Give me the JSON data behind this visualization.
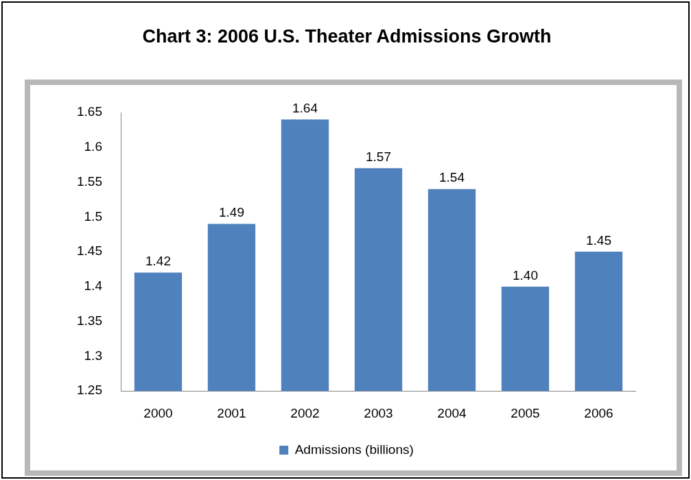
{
  "chart_data": {
    "type": "bar",
    "title": "Chart 3:  2006 U.S. Theater Admissions Growth",
    "categories": [
      "2000",
      "2001",
      "2002",
      "2003",
      "2004",
      "2005",
      "2006"
    ],
    "series": [
      {
        "name": "Admissions (billions)",
        "color": "#4f81bd",
        "values": [
          1.42,
          1.49,
          1.64,
          1.57,
          1.54,
          1.4,
          1.45
        ],
        "value_labels": [
          "1.42",
          "1.49",
          "1.64",
          "1.57",
          "1.54",
          "1.40",
          "1.45"
        ]
      }
    ],
    "ylim": [
      1.25,
      1.65
    ],
    "yticks": [
      1.25,
      1.3,
      1.35,
      1.4,
      1.45,
      1.5,
      1.55,
      1.6,
      1.65
    ],
    "grid": false,
    "legend": "bottom"
  }
}
